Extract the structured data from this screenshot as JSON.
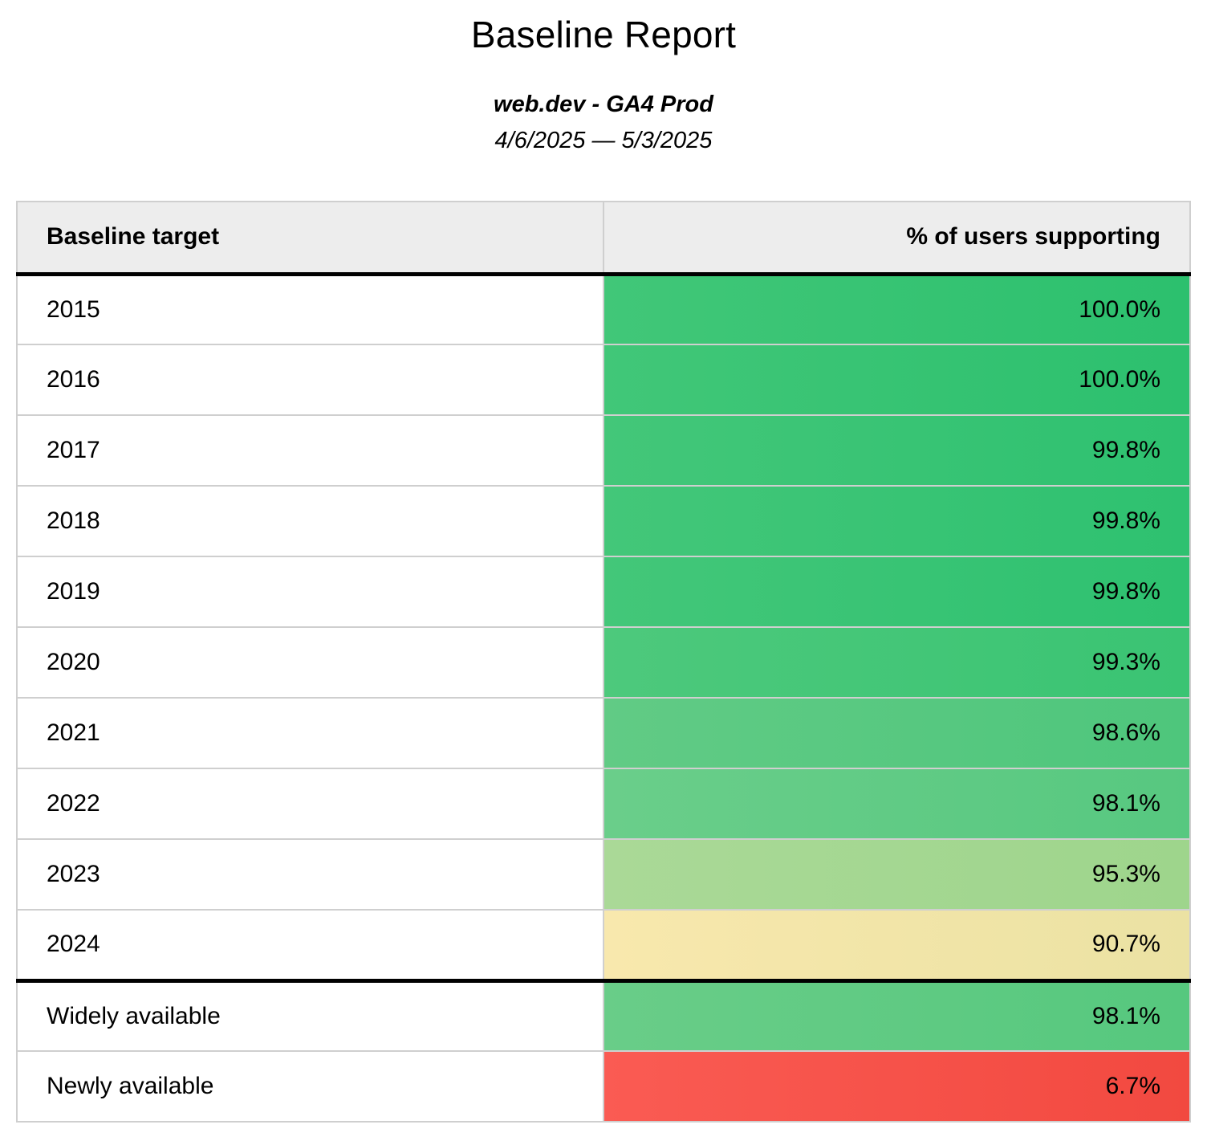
{
  "header": {
    "title": "Baseline Report",
    "subtitle": "web.dev - GA4 Prod",
    "date_range": "4/6/2025 — 5/3/2025"
  },
  "table": {
    "columns": [
      {
        "label": "Baseline target",
        "align": "left"
      },
      {
        "label": "% of users supporting",
        "align": "right"
      }
    ],
    "rows": [
      {
        "target": "2015",
        "value": "100.0%",
        "color_left": "#41c778",
        "color_right": "#2cc06e",
        "divider_above": false
      },
      {
        "target": "2016",
        "value": "100.0%",
        "color_left": "#41c778",
        "color_right": "#2cc06e",
        "divider_above": false
      },
      {
        "target": "2017",
        "value": "99.8%",
        "color_left": "#43c779",
        "color_right": "#2ec170",
        "divider_above": false
      },
      {
        "target": "2018",
        "value": "99.8%",
        "color_left": "#43c779",
        "color_right": "#2ec170",
        "divider_above": false
      },
      {
        "target": "2019",
        "value": "99.8%",
        "color_left": "#43c779",
        "color_right": "#2ec170",
        "divider_above": false
      },
      {
        "target": "2020",
        "value": "99.3%",
        "color_left": "#4dc97c",
        "color_right": "#3ac473",
        "divider_above": false
      },
      {
        "target": "2021",
        "value": "98.6%",
        "color_left": "#61cb85",
        "color_right": "#4ec67c",
        "divider_above": false
      },
      {
        "target": "2022",
        "value": "98.1%",
        "color_left": "#6ace8a",
        "color_right": "#57c880",
        "divider_above": false
      },
      {
        "target": "2023",
        "value": "95.3%",
        "color_left": "#aad997",
        "color_right": "#9ed58c",
        "divider_above": false
      },
      {
        "target": "2024",
        "value": "90.7%",
        "color_left": "#f8e8ad",
        "color_right": "#ebe2a3",
        "divider_above": false
      },
      {
        "target": "Widely available",
        "value": "98.1%",
        "color_left": "#69cd88",
        "color_right": "#56c87e",
        "divider_above": true
      },
      {
        "target": "Newly available",
        "value": "6.7%",
        "color_left": "#fa5b53",
        "color_right": "#f24940",
        "divider_above": false
      }
    ]
  },
  "theme": {
    "header_cell_bg": "#ededed",
    "grid_border_color": "#cfcfcf",
    "section_divider_color": "#000000",
    "text_color": "#000000",
    "good_color": "#2cc06e",
    "warn_color": "#ebe2a3",
    "bad_color": "#f24940"
  },
  "chart_data": {
    "type": "table",
    "title": "Baseline Report",
    "subtitle": "web.dev - GA4 Prod",
    "date_range": "4/6/2025 — 5/3/2025",
    "columns": [
      "Baseline target",
      "% of users supporting"
    ],
    "rows": [
      [
        "2015",
        100.0
      ],
      [
        "2016",
        100.0
      ],
      [
        "2017",
        99.8
      ],
      [
        "2018",
        99.8
      ],
      [
        "2019",
        99.8
      ],
      [
        "2020",
        99.3
      ],
      [
        "2021",
        98.6
      ],
      [
        "2022",
        98.1
      ],
      [
        "2023",
        95.3
      ],
      [
        "2024",
        90.7
      ],
      [
        "Widely available",
        98.1
      ],
      [
        "Newly available",
        6.7
      ]
    ],
    "value_unit": "percent",
    "layout_hints": {
      "value_column_conditional_formatting": "green for high values through yellow to red for low values",
      "section_break_after_row": "2024"
    }
  }
}
